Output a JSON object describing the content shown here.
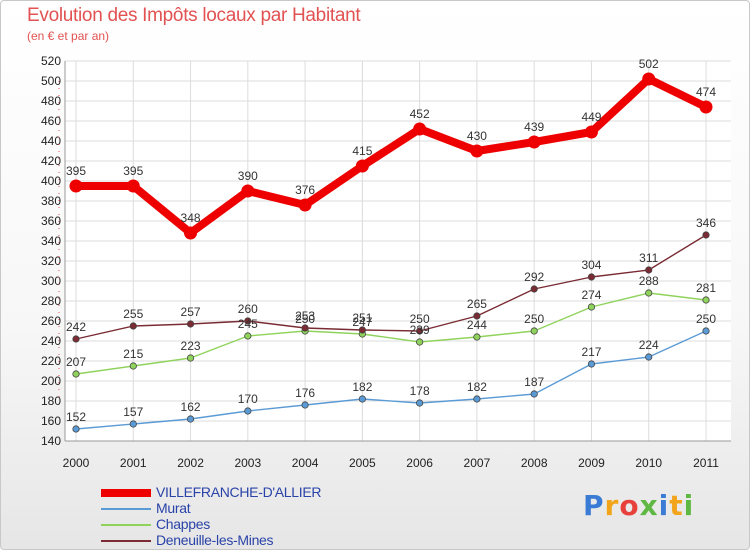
{
  "chart_data": {
    "type": "line",
    "title": "Evolution des Impôts locaux par Habitant",
    "subtitle": "(en € et par an)",
    "x": [
      "2000",
      "2001",
      "2002",
      "2003",
      "2004",
      "2005",
      "2006",
      "2007",
      "2008",
      "2009",
      "2010",
      "2011"
    ],
    "ylim": [
      140,
      520
    ],
    "ytick_step": 20,
    "series": [
      {
        "name": "VILLEFRANCHE-D'ALLIER",
        "color": "#ee0000",
        "values": [
          395,
          395,
          348,
          390,
          376,
          415,
          452,
          430,
          439,
          449,
          502,
          474
        ]
      },
      {
        "name": "Murat",
        "color": "#5b9bd5",
        "values": [
          152,
          157,
          162,
          170,
          176,
          182,
          178,
          182,
          187,
          217,
          224,
          250
        ]
      },
      {
        "name": "Chappes",
        "color": "#8fd35c",
        "values": [
          207,
          215,
          223,
          245,
          250,
          247,
          239,
          244,
          250,
          274,
          288,
          281
        ]
      },
      {
        "name": "Deneuille-les-Mines",
        "color": "#7a2b33",
        "values": [
          242,
          255,
          257,
          260,
          253,
          251,
          250,
          265,
          292,
          304,
          311,
          346
        ]
      }
    ]
  },
  "logo": {
    "letters": [
      "P",
      "r",
      "o",
      "x",
      "i",
      "t",
      "i"
    ],
    "colors": [
      "#3a7bd5",
      "#f2a51a",
      "#e8413c",
      "#5fb843",
      "#3a7bd5",
      "#f2a51a",
      "#5fb843"
    ]
  }
}
